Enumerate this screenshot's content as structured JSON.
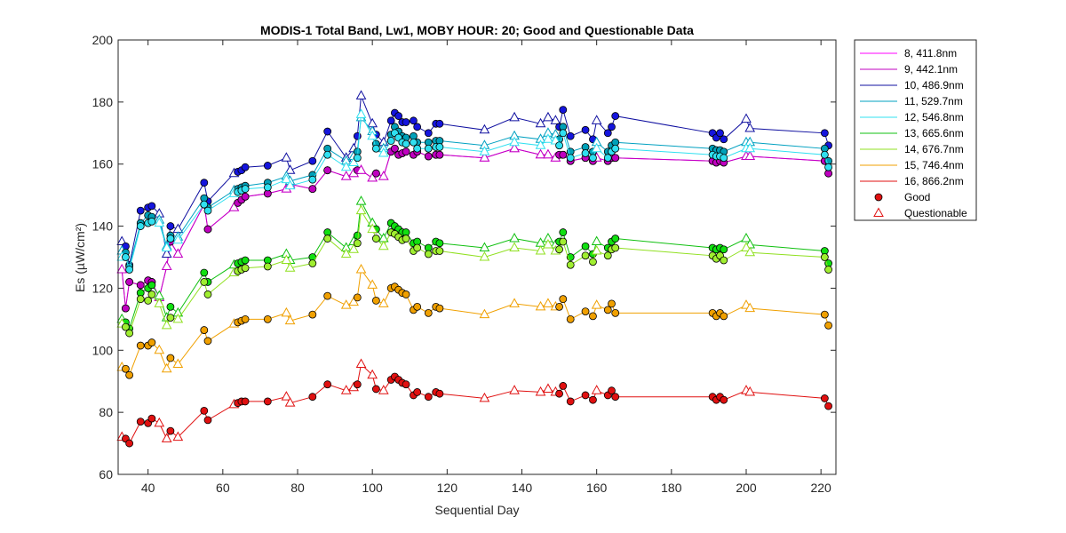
{
  "chart_data": {
    "type": "line",
    "title": "MODIS-1 Total Band,  Lw1, MOBY HOUR: 20;  Good and Questionable Data",
    "xlabel": "Sequential Day",
    "ylabel": "Es (µW/cm²)",
    "xlim": [
      32,
      224
    ],
    "ylim": [
      60,
      200
    ],
    "xticks": [
      "40",
      "60",
      "80",
      "100",
      "120",
      "140",
      "160",
      "180",
      "200",
      "220"
    ],
    "yticks": [
      "60",
      "80",
      "100",
      "120",
      "140",
      "160",
      "180",
      "200"
    ],
    "grid": false,
    "legend_position": "right",
    "x": [
      33,
      34,
      35,
      38,
      40,
      41,
      43,
      45,
      46,
      48,
      55,
      56,
      63,
      64,
      65,
      66,
      72,
      77,
      78,
      84,
      88,
      93,
      95,
      96,
      97,
      100,
      101,
      103,
      105,
      106,
      107,
      108,
      109,
      111,
      112,
      115,
      117,
      118,
      130,
      138,
      145,
      147,
      149,
      150,
      151,
      153,
      157,
      159,
      160,
      163,
      164,
      165,
      191,
      192,
      193,
      194,
      200,
      201,
      221,
      222
    ],
    "quality": [
      "Q",
      "G",
      "G",
      "G",
      "G",
      "G",
      "Q",
      "Q",
      "G",
      "Q",
      "G",
      "G",
      "Q",
      "G",
      "G",
      "G",
      "G",
      "Q",
      "Q",
      "G",
      "G",
      "Q",
      "Q",
      "G",
      "Q",
      "Q",
      "G",
      "Q",
      "G",
      "G",
      "G",
      "G",
      "G",
      "G",
      "G",
      "G",
      "G",
      "G",
      "Q",
      "Q",
      "Q",
      "Q",
      "Q",
      "G",
      "G",
      "G",
      "G",
      "G",
      "Q",
      "G",
      "G",
      "G",
      "G",
      "G",
      "G",
      "G",
      "Q",
      "Q",
      "G",
      "G"
    ],
    "series": [
      {
        "name": "8, 411.8nm",
        "color": "#ff00ff",
        "good_color": "#ee2ba8",
        "values": [
          126,
          113.5,
          122,
          121,
          122.5,
          122,
          117,
          127,
          135,
          131,
          147,
          139,
          146,
          147.5,
          148.5,
          149.5,
          150.5,
          152,
          153.5,
          152,
          158,
          156,
          157,
          158,
          158,
          155.5,
          157,
          156,
          164,
          165,
          163,
          163.5,
          164,
          163,
          164,
          162.5,
          163,
          163,
          162,
          165,
          163,
          163,
          162,
          163,
          163,
          161,
          162,
          161,
          162,
          161,
          162,
          162,
          161,
          160.5,
          161,
          160.5,
          162.5,
          162.5,
          161,
          157
        ]
      },
      {
        "name": "9, 442.1nm",
        "color": "#c000c0",
        "good_color": "#c000c0",
        "values": [
          126,
          113.5,
          122,
          121,
          122.5,
          122,
          117,
          127,
          135,
          131,
          147,
          139,
          146,
          147.5,
          148.5,
          149.5,
          150.5,
          152,
          153.5,
          152,
          158,
          156,
          157,
          158,
          158,
          155.5,
          157,
          156,
          164,
          165,
          163,
          163.5,
          164,
          163,
          164,
          162.5,
          163,
          163,
          162,
          165,
          163,
          163,
          162,
          163,
          163,
          161,
          162,
          161,
          162,
          161,
          162,
          162,
          161,
          160.5,
          161,
          160.5,
          162.5,
          162.5,
          161,
          157
        ]
      },
      {
        "name": "10, 486.9nm",
        "color": "#1010a0",
        "good_color": "#1515dd",
        "values": [
          135,
          133.5,
          127.5,
          145,
          146,
          146.5,
          144,
          131,
          140,
          139,
          154,
          148,
          157,
          157.5,
          158,
          159,
          159.5,
          162,
          158,
          161,
          170.5,
          162,
          165,
          169,
          182,
          173,
          169.5,
          167,
          174,
          176.5,
          175.5,
          173.5,
          173.5,
          174,
          172,
          170,
          173,
          173,
          171,
          175,
          173,
          175,
          174,
          172,
          177.5,
          169,
          171,
          168,
          174,
          170,
          172,
          175.5,
          170,
          168.5,
          170,
          168,
          174.5,
          171.5,
          170,
          166
        ]
      },
      {
        "name": "11, 529.7nm",
        "color": "#00a0c0",
        "good_color": "#00a0b8",
        "values": [
          132,
          131.5,
          127,
          141,
          143.5,
          143,
          142,
          133.5,
          137,
          136.5,
          149,
          146,
          151.5,
          152,
          152.5,
          153,
          154,
          156,
          154.5,
          156.5,
          165,
          161,
          162.5,
          164,
          175,
          170.5,
          166.5,
          165,
          169.5,
          172,
          170.5,
          169,
          168.5,
          169,
          167,
          167,
          167.5,
          167.5,
          166,
          169,
          168,
          170,
          169.5,
          168,
          172,
          164,
          165.5,
          164,
          167,
          164,
          166,
          167,
          165,
          164.5,
          164.5,
          164,
          167,
          167,
          165,
          161
        ]
      },
      {
        "name": "12, 546.8nm",
        "color": "#30e0f0",
        "good_color": "#30e0f0",
        "values": [
          130,
          130,
          126,
          140,
          141,
          141.5,
          141,
          133,
          136,
          135.5,
          147,
          145,
          150.5,
          151,
          151.5,
          152,
          152.5,
          155,
          153,
          155,
          163,
          159,
          160.5,
          162,
          176,
          169,
          165,
          163.5,
          167.5,
          170,
          168.5,
          167,
          166.5,
          167,
          165,
          165,
          165.5,
          165.5,
          164,
          167,
          166,
          168,
          167.5,
          166,
          170,
          162,
          163.5,
          162,
          165,
          162,
          164,
          165,
          163,
          162.5,
          162.5,
          162,
          165,
          165,
          163,
          159
        ]
      },
      {
        "name": "13, 665.6nm",
        "color": "#10c010",
        "good_color": "#10e010",
        "values": [
          110,
          109,
          107,
          118.5,
          120,
          121,
          117.5,
          110.5,
          114,
          112,
          125,
          122,
          127.5,
          128,
          128.5,
          129,
          129,
          131,
          129,
          130,
          138,
          133,
          135,
          137,
          148,
          141,
          139,
          136,
          141,
          140,
          139,
          138,
          138,
          134.5,
          135,
          133,
          135,
          134.5,
          133,
          136,
          134.5,
          136,
          134,
          135,
          138,
          130,
          133.5,
          131,
          135,
          133,
          135,
          136,
          133,
          132.5,
          133,
          132.5,
          136,
          134,
          132,
          128
        ]
      },
      {
        "name": "14, 676.7nm",
        "color": "#90e020",
        "good_color": "#a0ee30",
        "values": [
          108.5,
          107.5,
          105.5,
          116.5,
          116,
          118,
          115,
          108,
          110.5,
          110,
          122,
          118,
          125,
          125.5,
          126,
          126.5,
          127,
          129,
          126.5,
          128,
          136,
          131,
          132.5,
          134.5,
          145,
          139,
          136,
          133.5,
          138,
          137.5,
          136.5,
          135.5,
          136,
          132,
          133,
          131,
          132,
          132,
          130,
          133,
          132,
          134,
          132,
          132.5,
          135,
          127.5,
          130.5,
          128.5,
          132,
          130.5,
          132.5,
          133,
          130.5,
          129.5,
          130.5,
          129,
          133,
          131.5,
          130,
          126
        ]
      },
      {
        "name": "15, 746.4nm",
        "color": "#f0a000",
        "good_color": "#f0a000",
        "values": [
          94.5,
          94,
          92,
          101.5,
          101.5,
          102.5,
          100,
          94,
          97.5,
          95.5,
          106.5,
          103,
          108.5,
          109,
          109.5,
          110,
          110,
          112,
          109.5,
          111.5,
          117.5,
          114.5,
          115.5,
          117,
          126,
          121,
          116,
          115,
          120,
          120.5,
          119.5,
          118.5,
          118,
          113,
          114,
          112,
          114,
          113.5,
          111.5,
          115,
          114,
          115,
          114,
          114,
          116.5,
          110,
          112.5,
          111,
          114.5,
          113,
          115,
          112,
          112,
          111,
          112,
          111,
          114.5,
          113.5,
          111.5,
          108
        ]
      },
      {
        "name": "16, 866.2nm",
        "color": "#e01010",
        "good_color": "#e01010",
        "values": [
          72,
          71.5,
          70,
          77,
          76.5,
          78,
          76.5,
          71.5,
          74,
          72,
          80.5,
          77.5,
          82.5,
          83,
          83.5,
          83.5,
          83.5,
          85,
          83,
          85,
          89,
          87,
          88,
          89,
          95.5,
          92,
          87.5,
          87,
          90.5,
          91.5,
          90.5,
          89.5,
          89,
          85.5,
          86.5,
          85,
          86.5,
          86,
          84.5,
          87,
          86.5,
          87.5,
          86.5,
          86,
          88.5,
          83.5,
          85.5,
          84,
          87,
          85.5,
          87,
          85,
          85,
          84,
          85,
          84,
          87,
          86.5,
          84.5,
          82
        ]
      }
    ],
    "markers": [
      {
        "name": "Good",
        "shape": "circle"
      },
      {
        "name": "Questionable",
        "shape": "triangle"
      }
    ]
  }
}
